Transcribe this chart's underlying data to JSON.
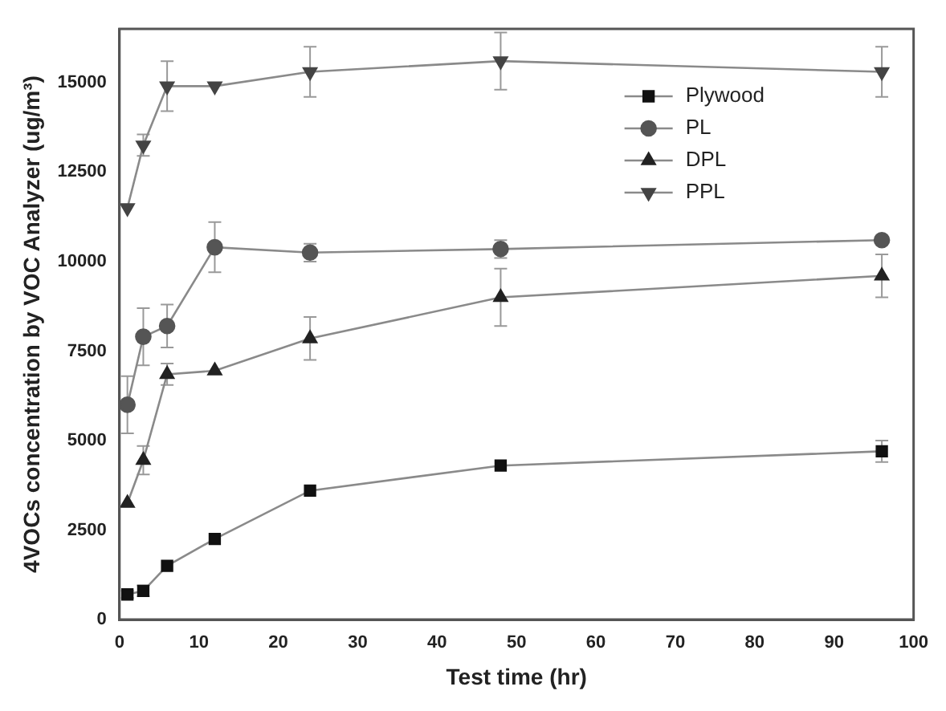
{
  "chart_data": {
    "type": "line",
    "xlabel": "Test time (hr)",
    "ylabel": "4VOCs concentration by VOC Analyzer (ug/m³)",
    "x": [
      1,
      3,
      6,
      12,
      24,
      48,
      96
    ],
    "xlim": [
      0,
      100
    ],
    "xticks": [
      0,
      10,
      20,
      30,
      40,
      50,
      60,
      70,
      80,
      90,
      100
    ],
    "ylim": [
      0,
      16500
    ],
    "yticks": [
      0,
      2500,
      5000,
      7500,
      10000,
      12500,
      15000
    ],
    "grid": false,
    "legend": "top right",
    "series": [
      {
        "name": "Plywood",
        "color": "#111111",
        "marker": "square",
        "values": [
          700,
          800,
          1500,
          2250,
          3600,
          4300,
          4700
        ],
        "errors": [
          100,
          150,
          null,
          null,
          null,
          null,
          300
        ]
      },
      {
        "name": "PL",
        "color": "#555555",
        "marker": "circle",
        "values": [
          6000,
          7900,
          8200,
          10400,
          10250,
          10350,
          10600
        ],
        "errors": [
          800,
          800,
          600,
          700,
          250,
          250,
          null
        ]
      },
      {
        "name": "DPL",
        "color": "#222222",
        "marker": "triangle",
        "values": [
          3250,
          4450,
          6850,
          6950,
          7850,
          9000,
          9600
        ],
        "errors": [
          null,
          400,
          300,
          null,
          600,
          800,
          600
        ]
      },
      {
        "name": "PPL",
        "color": "#444444",
        "marker": "triangle-down",
        "values": [
          11500,
          13250,
          14900,
          14900,
          15300,
          15600,
          15300
        ],
        "errors": [
          null,
          300,
          700,
          null,
          700,
          800,
          700
        ]
      }
    ]
  }
}
